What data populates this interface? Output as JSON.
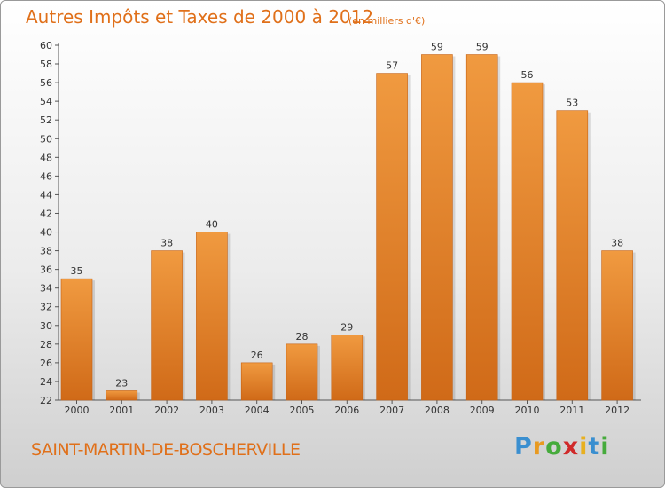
{
  "chart_data": {
    "type": "bar",
    "title": "Autres Impôts et Taxes de 2000 à 2012",
    "subtitle": "(en milliers d'€)",
    "categories": [
      "2000",
      "2001",
      "2002",
      "2003",
      "2004",
      "2005",
      "2006",
      "2007",
      "2008",
      "2009",
      "2010",
      "2011",
      "2012"
    ],
    "values": [
      35,
      23,
      38,
      40,
      26,
      28,
      29,
      57,
      59,
      59,
      56,
      53,
      38
    ],
    "ylim": [
      22,
      60
    ],
    "ytick_step": 2,
    "grid": false,
    "bar_color": "#f09a40",
    "bar_color_dark": "#d06a18"
  },
  "commune": "SAINT-MARTIN-DE-BOSCHERVILLE",
  "logo": {
    "letters": [
      "P",
      "r",
      "o",
      "x",
      "i",
      "t",
      "i"
    ],
    "colors": [
      "#3a8fd0",
      "#e89a20",
      "#46ab3c",
      "#d02a2a",
      "#e8b020",
      "#3a8fd0",
      "#46ab3c"
    ]
  }
}
